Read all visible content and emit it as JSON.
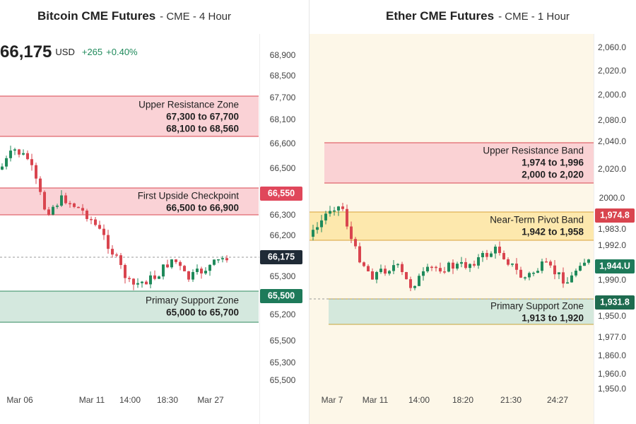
{
  "left": {
    "title": "Bitcoin CME Futures",
    "meta": "- CME - 4 Hour",
    "quote": {
      "price": "66,175",
      "currency": "USD",
      "change": "+265",
      "change_pct": "+0.40%"
    },
    "axis_labels": [
      "68,900",
      "68,500",
      "67,700",
      "68,100",
      "66,600",
      "66,500",
      "66,300",
      "66,200",
      "65,300",
      "65,200",
      "65,500",
      "65,300",
      "65,500"
    ],
    "price_tags": [
      "66,550",
      "66,175",
      "65,500"
    ],
    "zones": [
      {
        "title": "Upper Resistance Zone",
        "lines": [
          "67,300 to 67,700",
          "68,100 to 68,560"
        ]
      },
      {
        "title": "First Upside Checkpoint",
        "lines": [
          "66,500 to 66,900"
        ]
      },
      {
        "title": "Primary Support Zone",
        "lines": [
          "65,000 to 65,700"
        ]
      }
    ],
    "time_labels": [
      "Mar 06",
      "Mar 11",
      "14:00",
      "18:30",
      "Mar 27"
    ]
  },
  "right": {
    "title": "Ether CME Futures",
    "meta": "- CME - 1 Hour",
    "axis_labels": [
      "2,060.0",
      "2,020.0",
      "2,000.0",
      "2,080.0",
      "2,040.0",
      "2,020.0",
      "2000.0",
      "1,983.0",
      "1,992.0",
      "1,990.0",
      "1,950.0",
      "1,977.0",
      "1,860.0",
      "1,960.0",
      "1,950.0"
    ],
    "price_tags": [
      "1,974.8",
      "1,944.U",
      "1,931.8"
    ],
    "zones": [
      {
        "title": "Upper Resistance Band",
        "lines": [
          "1,974 to 1,996",
          "2,000 to 2,020"
        ]
      },
      {
        "title": "Near-Term Pivot Band",
        "lines": [
          "1,942 to 1,958"
        ]
      },
      {
        "title": "Primary Support Zone",
        "lines": [
          "1,913 to 1,920"
        ]
      }
    ],
    "time_labels": [
      "Mar 7",
      "Mar 11",
      "14:00",
      "18:20",
      "21:30",
      "24:27"
    ]
  }
}
